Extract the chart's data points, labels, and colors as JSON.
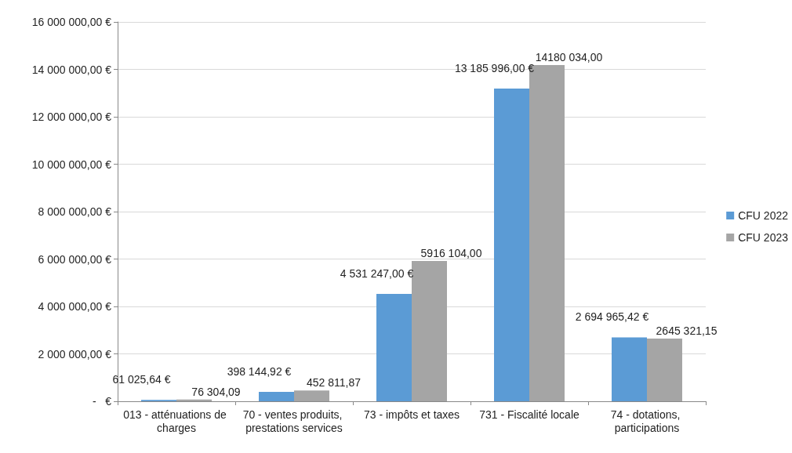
{
  "chart_data": {
    "type": "bar",
    "categories": [
      "013 - atténuations de charges",
      "70 - ventes produits, prestations services",
      "73 - impôts et taxes",
      "731 - Fiscalité locale",
      "74 - dotations, participations"
    ],
    "series": [
      {
        "name": "CFU 2022",
        "color": "#5b9bd5",
        "values": [
          61025.64,
          398144.92,
          4531247.0,
          13185996.0,
          2694965.42
        ],
        "value_labels": [
          "61 025,64 €",
          "398 144,92 €",
          "4 531 247,00 €",
          "13 185 996,00 €",
          "2 694 965,42 €"
        ]
      },
      {
        "name": "CFU 2023",
        "color": "#a5a5a5",
        "values": [
          76304.09,
          452811.87,
          5916104.0,
          14180034.0,
          2645321.15
        ],
        "value_labels": [
          "76 304,09",
          "452 811,87",
          "5916 104,00",
          "14180 034,00",
          "2645 321,15"
        ]
      }
    ],
    "ylim": [
      0,
      16000000
    ],
    "yticks": [
      {
        "value": 0,
        "label": "-   €"
      },
      {
        "value": 2000000,
        "label": "2 000 000,00 €"
      },
      {
        "value": 4000000,
        "label": "4 000 000,00 €"
      },
      {
        "value": 6000000,
        "label": "6 000 000,00 €"
      },
      {
        "value": 8000000,
        "label": "8 000 000,00 €"
      },
      {
        "value": 10000000,
        "label": "10 000 000,00 €"
      },
      {
        "value": 12000000,
        "label": "12 000 000,00 €"
      },
      {
        "value": 14000000,
        "label": "14 000 000,00 €"
      },
      {
        "value": 16000000,
        "label": "16 000 000,00 €"
      }
    ],
    "grid": "y",
    "legend": "right"
  }
}
